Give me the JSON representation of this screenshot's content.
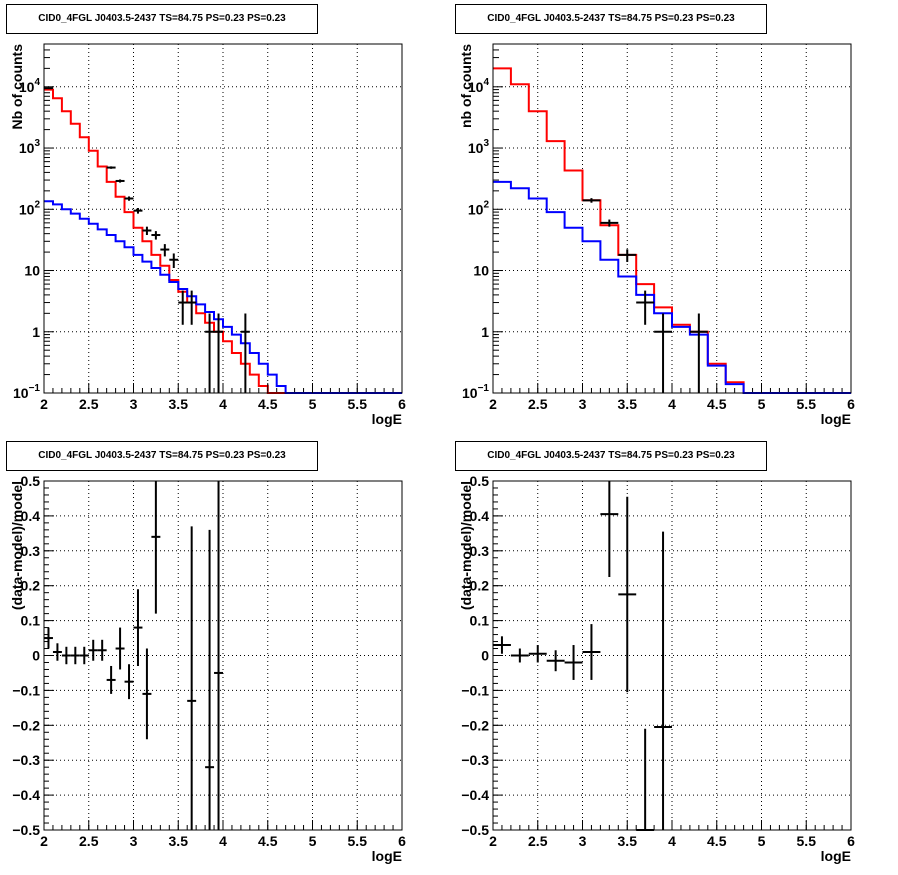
{
  "chart_data": [
    {
      "type": "line",
      "panel": "top-left",
      "title": "CID0_4FGL J0403.5-2437 TS=84.75 PS=0.23 PS=0.23",
      "xlabel": "logE",
      "ylabel": "Nb of counts",
      "xlim": [
        2,
        6
      ],
      "ylim": [
        0.1,
        50000
      ],
      "log_y": true,
      "grid": true,
      "x_ticks": [
        "2",
        "2.5",
        "3",
        "3.5",
        "4",
        "4.5",
        "5",
        "5.5",
        "6"
      ],
      "y_ticks": [
        {
          "v": 0.1,
          "t": "10",
          "sup": "−1"
        },
        {
          "v": 1,
          "t": "1",
          "sup": ""
        },
        {
          "v": 10,
          "t": "10",
          "sup": ""
        },
        {
          "v": 100,
          "t": "10",
          "sup": "2"
        },
        {
          "v": 1000,
          "t": "10",
          "sup": "3"
        },
        {
          "v": 10000,
          "t": "10",
          "sup": "4"
        }
      ],
      "bin_edges": [
        2.0,
        2.1,
        2.2,
        2.3,
        2.4,
        2.5,
        2.6,
        2.7,
        2.8,
        2.9,
        3.0,
        3.1,
        3.2,
        3.3,
        3.4,
        3.5,
        3.6,
        3.7,
        3.8,
        3.9,
        4.0,
        4.1,
        4.2,
        4.3,
        4.4,
        4.5,
        4.6,
        4.7,
        4.8,
        4.9,
        5.0,
        5.1,
        5.2,
        5.3,
        5.4,
        5.5,
        5.6,
        5.7,
        5.8,
        5.9,
        6.0
      ],
      "series": [
        {
          "color": "#ff0000",
          "values": [
            9000,
            6500,
            4000,
            2500,
            1500,
            900,
            500,
            280,
            160,
            90,
            50,
            30,
            18,
            12,
            7,
            4.5,
            3,
            2,
            1.4,
            1.0,
            0.7,
            0.45,
            0.3,
            0.2,
            0.13,
            0.1,
            0.1,
            0.1,
            0.1,
            0.1,
            0.1,
            0.1,
            0.1,
            0.1,
            0.1,
            0.1,
            0.1,
            0.1,
            0.1,
            0.1
          ]
        },
        {
          "color": "#0000ff",
          "values": [
            135,
            120,
            100,
            85,
            70,
            58,
            47,
            38,
            30,
            24,
            18,
            14,
            11,
            8.5,
            6.5,
            5,
            3.8,
            2.8,
            2.1,
            1.6,
            1.2,
            0.9,
            0.65,
            0.45,
            0.3,
            0.2,
            0.13,
            0.1,
            0.1,
            0.1,
            0.1,
            0.1,
            0.1,
            0.1,
            0.1,
            0.1,
            0.1,
            0.1,
            0.1,
            0.1
          ]
        }
      ],
      "data_points": [
        {
          "x": 2.05,
          "y": 9500,
          "ey": 100
        },
        {
          "x": 2.75,
          "y": 480,
          "ey": 22
        },
        {
          "x": 2.85,
          "y": 290,
          "ey": 17
        },
        {
          "x": 2.95,
          "y": 150,
          "ey": 12
        },
        {
          "x": 3.05,
          "y": 95,
          "ey": 10
        },
        {
          "x": 3.15,
          "y": 45,
          "ey": 7
        },
        {
          "x": 3.25,
          "y": 38,
          "ey": 6
        },
        {
          "x": 3.35,
          "y": 22,
          "ey": 5
        },
        {
          "x": 3.45,
          "y": 15,
          "ey": 4
        },
        {
          "x": 3.55,
          "y": 3,
          "ey": 1.7
        },
        {
          "x": 3.65,
          "y": 3,
          "ey": 1.7
        },
        {
          "x": 3.85,
          "y": 1,
          "ey": 0.99
        },
        {
          "x": 3.95,
          "y": 1,
          "ey": 0.99
        },
        {
          "x": 4.25,
          "y": 1,
          "ey": 0.99
        }
      ]
    },
    {
      "type": "line",
      "panel": "top-right",
      "title": "CID0_4FGL J0403.5-2437 TS=84.75 PS=0.23 PS=0.23",
      "xlabel": "logE",
      "ylabel": "nb of counts",
      "xlim": [
        2,
        6
      ],
      "ylim": [
        0.1,
        50000
      ],
      "log_y": true,
      "grid": true,
      "x_ticks": [
        "2",
        "2.5",
        "3",
        "3.5",
        "4",
        "4.5",
        "5",
        "5.5",
        "6"
      ],
      "y_ticks": [
        {
          "v": 0.1,
          "t": "10",
          "sup": "−1"
        },
        {
          "v": 1,
          "t": "1",
          "sup": ""
        },
        {
          "v": 10,
          "t": "10",
          "sup": ""
        },
        {
          "v": 100,
          "t": "10",
          "sup": "2"
        },
        {
          "v": 1000,
          "t": "10",
          "sup": "3"
        },
        {
          "v": 10000,
          "t": "10",
          "sup": "4"
        }
      ],
      "bin_edges": [
        2.0,
        2.2,
        2.4,
        2.6,
        2.8,
        3.0,
        3.2,
        3.4,
        3.6,
        3.8,
        4.0,
        4.2,
        4.4,
        4.6,
        4.8,
        5.0,
        5.2,
        5.4,
        5.6,
        5.8,
        6.0
      ],
      "series": [
        {
          "color": "#ff0000",
          "values": [
            20000,
            11000,
            4000,
            1300,
            430,
            140,
            55,
            18,
            6,
            2.5,
            1.3,
            1.0,
            0.3,
            0.15,
            0.1,
            0.1,
            0.1,
            0.1,
            0.1,
            0.1
          ]
        },
        {
          "color": "#0000ff",
          "values": [
            280,
            220,
            150,
            90,
            50,
            30,
            15,
            8,
            4,
            2,
            1.2,
            0.9,
            0.28,
            0.14,
            0.1,
            0.1,
            0.1,
            0.1,
            0.1,
            0.1
          ]
        }
      ],
      "data_points": [
        {
          "x": 3.1,
          "y": 140,
          "ey": 12
        },
        {
          "x": 3.3,
          "y": 60,
          "ey": 8
        },
        {
          "x": 3.5,
          "y": 18,
          "ey": 4.2
        },
        {
          "x": 3.7,
          "y": 3,
          "ey": 1.7
        },
        {
          "x": 3.9,
          "y": 1,
          "ey": 0.99
        },
        {
          "x": 4.3,
          "y": 1,
          "ey": 0.99
        }
      ]
    },
    {
      "type": "scatter",
      "panel": "bottom-left",
      "title": "CID0_4FGL J0403.5-2437 TS=84.75 PS=0.23 PS=0.23",
      "xlabel": "logE",
      "ylabel": "(data-model)/model",
      "xlim": [
        2,
        6
      ],
      "ylim": [
        -0.5,
        0.5
      ],
      "log_y": false,
      "grid": true,
      "x_ticks": [
        "2",
        "2.5",
        "3",
        "3.5",
        "4",
        "4.5",
        "5",
        "5.5",
        "6"
      ],
      "y_ticks": [
        {
          "v": -0.5,
          "t": "−0.5",
          "sup": ""
        },
        {
          "v": -0.4,
          "t": "−0.4",
          "sup": ""
        },
        {
          "v": -0.3,
          "t": "−0.3",
          "sup": ""
        },
        {
          "v": -0.2,
          "t": "−0.2",
          "sup": ""
        },
        {
          "v": -0.1,
          "t": "−0.1",
          "sup": ""
        },
        {
          "v": 0,
          "t": "0",
          "sup": ""
        },
        {
          "v": 0.1,
          "t": "0.1",
          "sup": ""
        },
        {
          "v": 0.2,
          "t": "0.2",
          "sup": ""
        },
        {
          "v": 0.3,
          "t": "0.3",
          "sup": ""
        },
        {
          "v": 0.4,
          "t": "0.4",
          "sup": ""
        },
        {
          "v": 0.5,
          "t": "0.5",
          "sup": ""
        }
      ],
      "bin_width": 0.1,
      "data_points": [
        {
          "x": 2.05,
          "y": 0.05,
          "ey": 0.03
        },
        {
          "x": 2.15,
          "y": 0.01,
          "ey": 0.025
        },
        {
          "x": 2.25,
          "y": 0.0,
          "ey": 0.025
        },
        {
          "x": 2.35,
          "y": 0.0,
          "ey": 0.025
        },
        {
          "x": 2.45,
          "y": 0.0,
          "ey": 0.025
        },
        {
          "x": 2.55,
          "y": 0.015,
          "ey": 0.03
        },
        {
          "x": 2.65,
          "y": 0.015,
          "ey": 0.03
        },
        {
          "x": 2.75,
          "y": -0.07,
          "ey": 0.04
        },
        {
          "x": 2.85,
          "y": 0.02,
          "ey": 0.06
        },
        {
          "x": 2.95,
          "y": -0.075,
          "ey": 0.05
        },
        {
          "x": 3.05,
          "y": 0.08,
          "ey": 0.11
        },
        {
          "x": 3.15,
          "y": -0.11,
          "ey": 0.13
        },
        {
          "x": 3.25,
          "y": 0.34,
          "ey": 0.22
        },
        {
          "x": 3.65,
          "y": -0.13,
          "ey": 0.5
        },
        {
          "x": 3.85,
          "y": -0.32,
          "ey": 0.68
        },
        {
          "x": 3.95,
          "y": -0.05,
          "ey": 0.7
        }
      ]
    },
    {
      "type": "scatter",
      "panel": "bottom-right",
      "title": "CID0_4FGL J0403.5-2437 TS=84.75 PS=0.23 PS=0.23",
      "xlabel": "logE",
      "ylabel": "(data-model)/model",
      "xlim": [
        2,
        6
      ],
      "ylim": [
        -0.5,
        0.5
      ],
      "log_y": false,
      "grid": true,
      "x_ticks": [
        "2",
        "2.5",
        "3",
        "3.5",
        "4",
        "4.5",
        "5",
        "5.5",
        "6"
      ],
      "y_ticks": [
        {
          "v": -0.5,
          "t": "−0.5",
          "sup": ""
        },
        {
          "v": -0.4,
          "t": "−0.4",
          "sup": ""
        },
        {
          "v": -0.3,
          "t": "−0.3",
          "sup": ""
        },
        {
          "v": -0.2,
          "t": "−0.2",
          "sup": ""
        },
        {
          "v": -0.1,
          "t": "−0.1",
          "sup": ""
        },
        {
          "v": 0,
          "t": "0",
          "sup": ""
        },
        {
          "v": 0.1,
          "t": "0.1",
          "sup": ""
        },
        {
          "v": 0.2,
          "t": "0.2",
          "sup": ""
        },
        {
          "v": 0.3,
          "t": "0.3",
          "sup": ""
        },
        {
          "v": 0.4,
          "t": "0.4",
          "sup": ""
        },
        {
          "v": 0.5,
          "t": "0.5",
          "sup": ""
        }
      ],
      "bin_width": 0.2,
      "data_points": [
        {
          "x": 2.1,
          "y": 0.03,
          "ey": 0.025
        },
        {
          "x": 2.3,
          "y": 0.0,
          "ey": 0.02
        },
        {
          "x": 2.5,
          "y": 0.005,
          "ey": 0.025
        },
        {
          "x": 2.7,
          "y": -0.015,
          "ey": 0.03
        },
        {
          "x": 2.9,
          "y": -0.02,
          "ey": 0.05
        },
        {
          "x": 3.1,
          "y": 0.01,
          "ey": 0.08
        },
        {
          "x": 3.3,
          "y": 0.405,
          "ey": 0.18
        },
        {
          "x": 3.5,
          "y": 0.175,
          "ey": 0.28
        },
        {
          "x": 3.7,
          "y": -0.5,
          "ey": 0.29
        },
        {
          "x": 3.9,
          "y": -0.205,
          "ey": 0.56
        }
      ]
    }
  ]
}
